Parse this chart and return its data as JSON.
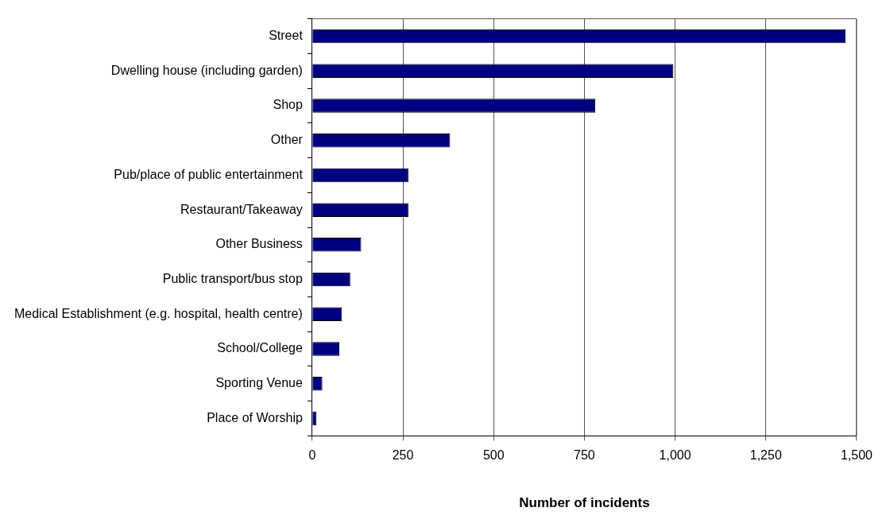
{
  "chart_data": {
    "type": "bar",
    "orientation": "horizontal",
    "xlabel": "Number of incidents",
    "categories": [
      "Street",
      "Dwelling house (including garden)",
      "Shop",
      "Other",
      "Pub/place of public entertainment",
      "Restaurant/Takeaway",
      "Other Business",
      "Public transport/bus stop",
      "Medical Establishment (e.g. hospital, health centre)",
      "School/College",
      "Sporting Venue",
      "Place of Worship"
    ],
    "values": [
      1470,
      995,
      780,
      380,
      265,
      265,
      135,
      105,
      82,
      75,
      28,
      12
    ],
    "color": "#000080",
    "xlim": [
      0,
      1500
    ],
    "xticks": [
      0,
      {
        "value": 250,
        "label": "250"
      },
      {
        "value": 500,
        "label": "500"
      },
      {
        "value": 750,
        "label": "750"
      },
      {
        "value": 1000,
        "label": "1,000"
      },
      {
        "value": 1250,
        "label": "1,250"
      },
      {
        "value": 1500,
        "label": "1,500"
      }
    ],
    "grid": "x",
    "legend": false
  }
}
